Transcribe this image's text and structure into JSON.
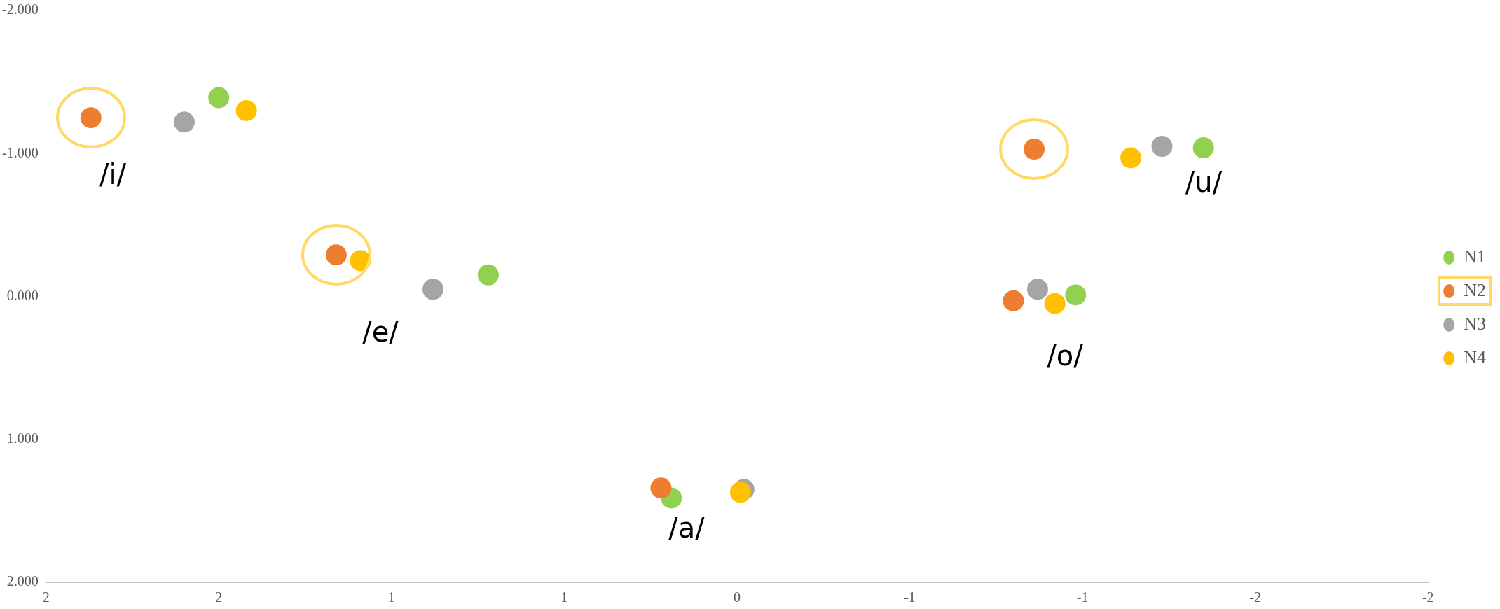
{
  "chart_data": {
    "type": "scatter",
    "legend": "right",
    "marker": "circle",
    "xlim": [
      2,
      -2
    ],
    "ylim": [
      2,
      -2
    ],
    "xticks": [
      {
        "value": 2,
        "label": "2"
      },
      {
        "value": 1.5,
        "label": "2"
      },
      {
        "value": 1,
        "label": "1"
      },
      {
        "value": 0.5,
        "label": "1"
      },
      {
        "value": 0,
        "label": "0"
      },
      {
        "value": -0.5,
        "label": "-1"
      },
      {
        "value": -1,
        "label": "-1"
      },
      {
        "value": -1.5,
        "label": "-2"
      },
      {
        "value": -2,
        "label": "-2"
      }
    ],
    "yticks": [
      {
        "value": -2,
        "label": "-2.000"
      },
      {
        "value": -1,
        "label": "-1.000"
      },
      {
        "value": 0,
        "label": "0.000"
      },
      {
        "value": 1,
        "label": "1.000"
      },
      {
        "value": 2,
        "label": "2.000"
      }
    ],
    "series": [
      {
        "name": "N1",
        "color": "#92d050",
        "x": [
          1.5,
          0.72,
          0.19,
          -1.35,
          -0.98
        ],
        "values": [
          -1.39,
          -0.15,
          1.41,
          -1.04,
          -0.01
        ]
      },
      {
        "name": "N2",
        "color": "#ed7d31",
        "x": [
          1.87,
          1.16,
          0.22,
          -0.86,
          -0.8
        ],
        "values": [
          -1.25,
          -0.29,
          1.34,
          -1.03,
          0.03
        ]
      },
      {
        "name": "N3",
        "color": "#a5a5a5",
        "x": [
          1.6,
          0.88,
          -0.02,
          -1.23,
          -0.87
        ],
        "values": [
          -1.22,
          -0.05,
          1.35,
          -1.05,
          -0.05
        ]
      },
      {
        "name": "N4",
        "color": "#ffc000",
        "x": [
          1.42,
          1.09,
          -0.01,
          -1.14,
          -0.92
        ],
        "values": [
          -1.3,
          -0.25,
          1.37,
          -0.97,
          0.05
        ]
      }
    ],
    "annotations": [
      "/i/",
      "/e/",
      "/a/",
      "/u/",
      "/o/"
    ]
  }
}
